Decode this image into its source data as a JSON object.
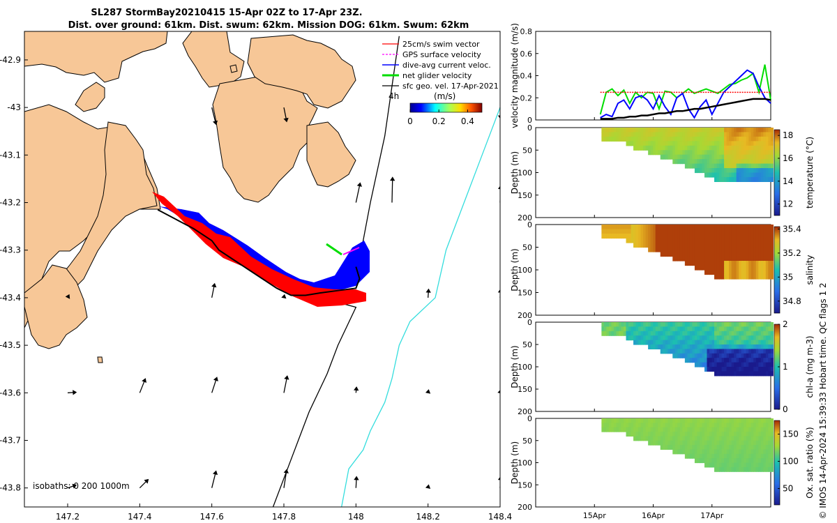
{
  "header": {
    "title_line1": "SL287 StormBay20210415 15-Apr 02Z to 17-Apr 23Z.",
    "title_line2": "Dist. over ground: 61km. Dist. swum: 62km. Mission DOG: 61km. Swum: 62km"
  },
  "colors": {
    "land": "#f7c797",
    "swim_vector": "#ff0000",
    "gps_velocity": "#ff00ff",
    "dive_avg": "#0000ff",
    "net_glider": "#00dd00",
    "sfc_geo": "#000000",
    "isobath_200": "#000000",
    "isobath_1000": "#33dddd"
  },
  "map": {
    "x_ticks": [
      "147.2",
      "147.4",
      "147.6",
      "147.8",
      "148",
      "148.2",
      "148.4"
    ],
    "y_ticks": [
      "-42.9",
      "-43",
      "-43.1",
      "-43.2",
      "-43.3",
      "-43.4",
      "-43.5",
      "-43.6",
      "-43.7",
      "-43.8"
    ],
    "xlim": [
      147.08,
      148.4
    ],
    "ylim": [
      -43.84,
      -42.84
    ],
    "legend": [
      {
        "label": "25cm/s swim vector",
        "color": "#ff0000"
      },
      {
        "label": "GPS surface velocity",
        "color": "#ff00ff"
      },
      {
        "label": "dive-avg current veloc.",
        "color": "#0000ff"
      },
      {
        "label": "net glider velocity",
        "color": "#00dd00"
      },
      {
        "label": "sfc geo. vel. 17-Apr-2021",
        "color": "#000000"
      }
    ],
    "colorbar": {
      "label_prefix": "4h",
      "unit": "(m/s)",
      "ticks": [
        "0",
        "0.2",
        "0.4"
      ],
      "range": [
        0,
        0.5
      ]
    },
    "isobath_label": "isobaths: 0   200  1000m",
    "glider_track": [
      [
        147.45,
        -43.215
      ],
      [
        147.5,
        -43.235
      ],
      [
        147.55,
        -43.255
      ],
      [
        147.6,
        -43.28
      ],
      [
        147.62,
        -43.3
      ],
      [
        147.66,
        -43.32
      ],
      [
        147.7,
        -43.34
      ],
      [
        147.74,
        -43.36
      ],
      [
        147.78,
        -43.38
      ],
      [
        147.82,
        -43.395
      ],
      [
        147.86,
        -43.395
      ],
      [
        147.9,
        -43.39
      ],
      [
        147.95,
        -43.385
      ],
      [
        148.0,
        -43.38
      ],
      [
        148.01,
        -43.36
      ],
      [
        148.0,
        -43.335
      ]
    ],
    "isobath_200": [
      [
        148.12,
        -42.85
      ],
      [
        148.08,
        -43.06
      ],
      [
        148.04,
        -43.2
      ],
      [
        148.01,
        -43.32
      ],
      [
        147.96,
        -43.37
      ],
      [
        147.9,
        -43.4
      ],
      [
        148.0,
        -43.42
      ],
      [
        147.95,
        -43.5
      ],
      [
        147.92,
        -43.56
      ],
      [
        147.87,
        -43.64
      ],
      [
        147.84,
        -43.7
      ],
      [
        147.81,
        -43.76
      ],
      [
        147.77,
        -43.84
      ]
    ],
    "isobath_1000": [
      [
        148.4,
        -43.0
      ],
      [
        148.35,
        -43.1
      ],
      [
        148.3,
        -43.2
      ],
      [
        148.25,
        -43.3
      ],
      [
        148.22,
        -43.4
      ],
      [
        148.15,
        -43.45
      ],
      [
        148.12,
        -43.5
      ],
      [
        148.1,
        -43.57
      ],
      [
        148.08,
        -43.62
      ],
      [
        148.04,
        -43.68
      ],
      [
        148.02,
        -43.72
      ],
      [
        147.98,
        -43.76
      ],
      [
        147.96,
        -43.84
      ]
    ]
  },
  "chart_data": [
    {
      "type": "line",
      "title": "",
      "ylabel": "velocity magnitude (m/s)",
      "ylim": [
        0,
        0.8
      ],
      "y_ticks": [
        "0",
        "0.2",
        "0.4",
        "0.6",
        "0.8"
      ],
      "x": [
        0,
        0.1,
        0.2,
        0.3,
        0.4,
        0.5,
        0.6,
        0.7,
        0.8,
        0.9,
        1.0,
        1.1,
        1.2,
        1.3,
        1.4,
        1.5,
        1.6,
        1.7,
        1.8,
        1.9,
        2.0,
        2.1,
        2.2,
        2.3,
        2.4,
        2.5,
        2.6,
        2.7,
        2.8,
        2.9
      ],
      "series": [
        {
          "name": "net glider velocity",
          "color": "#00dd00",
          "values": [
            0.05,
            0.25,
            0.28,
            0.22,
            0.27,
            0.15,
            0.25,
            0.2,
            0.25,
            0.24,
            0.1,
            0.26,
            0.25,
            0.2,
            0.24,
            0.28,
            0.24,
            0.26,
            0.28,
            0.26,
            0.24,
            0.28,
            0.32,
            0.33,
            0.36,
            0.38,
            0.42,
            0.25,
            0.5,
            0.18
          ]
        },
        {
          "name": "dive-avg current veloc.",
          "color": "#0000ff",
          "values": [
            0.02,
            0.05,
            0.03,
            0.15,
            0.18,
            0.1,
            0.2,
            0.22,
            0.18,
            0.1,
            0.22,
            0.12,
            0.05,
            0.2,
            0.24,
            0.1,
            0.02,
            0.12,
            0.18,
            0.05,
            0.15,
            0.25,
            0.3,
            0.35,
            0.4,
            0.45,
            0.42,
            0.3,
            0.2,
            0.15
          ]
        },
        {
          "name": "sfc geo. vel.",
          "color": "#000000",
          "values": [
            0.01,
            0.01,
            0.01,
            0.02,
            0.02,
            0.03,
            0.03,
            0.04,
            0.04,
            0.05,
            0.06,
            0.06,
            0.07,
            0.08,
            0.08,
            0.09,
            0.1,
            0.1,
            0.11,
            0.12,
            0.13,
            0.14,
            0.15,
            0.16,
            0.17,
            0.18,
            0.19,
            0.19,
            0.19,
            0.18
          ]
        },
        {
          "name": "25cm/s swim vector",
          "color": "#ff0000",
          "values": [
            0.25,
            0.25,
            0.25,
            0.25,
            0.25,
            0.25,
            0.25,
            0.25,
            0.25,
            0.25,
            0.25,
            0.25,
            0.25,
            0.25,
            0.25,
            0.25,
            0.25,
            0.25,
            0.25,
            0.25,
            0.25,
            0.25,
            0.25,
            0.25,
            0.25,
            0.25,
            0.25,
            0.25,
            0.25,
            0.25
          ]
        }
      ]
    },
    {
      "type": "heatmap",
      "variable": "temperature",
      "colorbar_label": "temperature (°C)",
      "cbar_ticks": [
        "12",
        "14",
        "16",
        "18"
      ],
      "cbar_range": [
        11,
        18.5
      ],
      "ylabel": "Depth (m)",
      "ylim": [
        0,
        200
      ],
      "y_ticks": [
        "0",
        "50",
        "100",
        "150",
        "200"
      ]
    },
    {
      "type": "heatmap",
      "variable": "salinity",
      "colorbar_label": "salinity",
      "cbar_ticks": [
        "34.8",
        "35",
        "35.2",
        "35.4"
      ],
      "cbar_range": [
        34.7,
        35.42
      ],
      "ylabel": "Depth (m)",
      "ylim": [
        0,
        200
      ],
      "y_ticks": [
        "0",
        "50",
        "100",
        "150",
        "200"
      ]
    },
    {
      "type": "heatmap",
      "variable": "chl-a",
      "colorbar_label": "chl-a (mg m-3)",
      "cbar_ticks": [
        "0",
        "1",
        "2"
      ],
      "cbar_range": [
        0,
        2
      ],
      "ylabel": "Depth (m)",
      "ylim": [
        0,
        200
      ],
      "y_ticks": [
        "0",
        "50",
        "100",
        "150",
        "200"
      ]
    },
    {
      "type": "heatmap",
      "variable": "oxygen",
      "colorbar_label": "Ox. sat. ratio (%)",
      "cbar_ticks": [
        "50",
        "100",
        "150"
      ],
      "cbar_range": [
        20,
        175
      ],
      "ylabel": "Depth (m)",
      "ylim": [
        0,
        200
      ],
      "y_ticks": [
        "0",
        "50",
        "100",
        "150",
        "200"
      ]
    }
  ],
  "time_axis": {
    "ticks": [
      "15Apr",
      "16Apr",
      "17Apr"
    ],
    "start_day": 14.0,
    "end_day": 18.0
  },
  "footer": {
    "credit": "© IMOS 14-Apr-2024 15:39:33 Hobart time. QC flags 1  2"
  }
}
